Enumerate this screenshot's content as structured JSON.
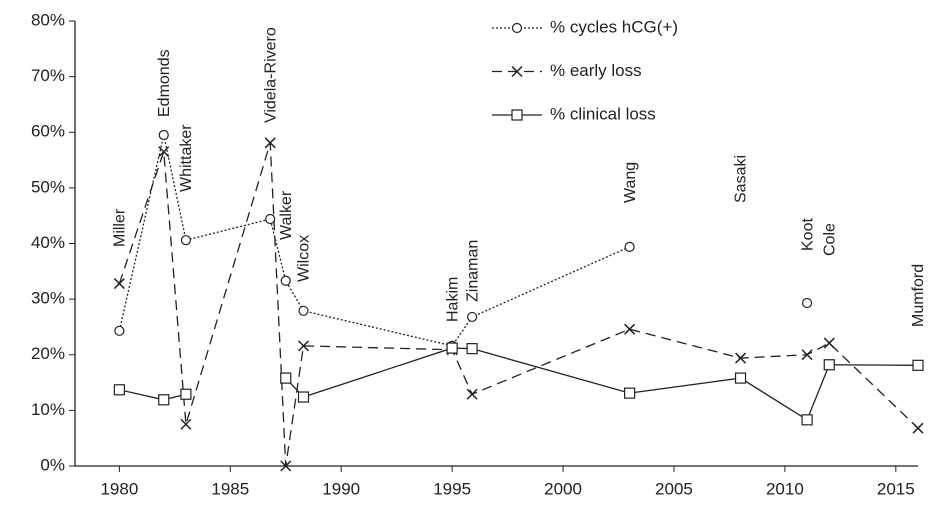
{
  "chart_data": {
    "type": "line",
    "x": [
      1980,
      1982,
      1983,
      1986.8,
      1987.5,
      1988.3,
      1995,
      1995.9,
      2003,
      2008,
      2011,
      2012,
      2016
    ],
    "labels": [
      "Miller",
      "Edmonds",
      "Whittaker",
      "Videla-Rivero",
      "Walker",
      "Wilcox",
      "Hakim",
      "Zinaman",
      "Wang",
      "Sasaki",
      "Koot",
      "Cole",
      "Mumford"
    ],
    "series": [
      {
        "name": "% cycles hCG(+)",
        "color": "#222222",
        "marker": "circle",
        "dash": "dotted",
        "values": [
          24.3,
          59.5,
          40.6,
          44.4,
          33.3,
          27.9,
          21.6,
          26.8,
          39.4,
          null,
          29.3,
          null,
          null
        ]
      },
      {
        "name": "% early loss",
        "color": "#222222",
        "marker": "x",
        "dash": "dashed",
        "values": [
          32.8,
          56.5,
          7.5,
          58.1,
          0,
          21.6,
          20.9,
          12.9,
          24.6,
          19.4,
          20.0,
          22.1,
          6.8
        ]
      },
      {
        "name": "% clinical loss",
        "color": "#222222",
        "marker": "square",
        "dash": "solid",
        "values": [
          13.7,
          11.9,
          12.9,
          null,
          15.8,
          12.4,
          21.2,
          21.1,
          13.1,
          15.8,
          8.3,
          18.2,
          18.1
        ]
      }
    ],
    "xlim": [
      1978,
      2016
    ],
    "xticks": [
      1980,
      1985,
      1990,
      1995,
      2000,
      2005,
      2010,
      2015
    ],
    "ylim": [
      0,
      80
    ],
    "yticks": [
      {
        "value": 0,
        "label": "0%"
      },
      {
        "value": 10,
        "label": "10%"
      },
      {
        "value": 20,
        "label": "20%"
      },
      {
        "value": 30,
        "label": "30%"
      },
      {
        "value": 40,
        "label": "40%"
      },
      {
        "value": 50,
        "label": "50%"
      },
      {
        "value": 60,
        "label": "60%"
      },
      {
        "value": 70,
        "label": "70%"
      },
      {
        "value": 80,
        "label": "80%"
      }
    ],
    "grid": false
  }
}
